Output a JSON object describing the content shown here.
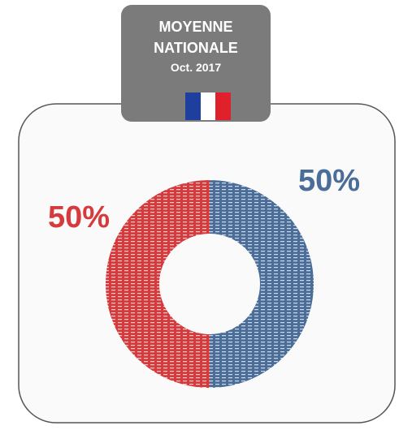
{
  "chart_data": {
    "type": "pie",
    "donut": true,
    "title": "MOYENNE NATIONALE",
    "subtitle": "Oct. 2017",
    "values": [
      50,
      50
    ],
    "value_labels": [
      "50%",
      "50%"
    ],
    "colors": [
      "#4a6e99",
      "#d63a3c"
    ]
  }
}
